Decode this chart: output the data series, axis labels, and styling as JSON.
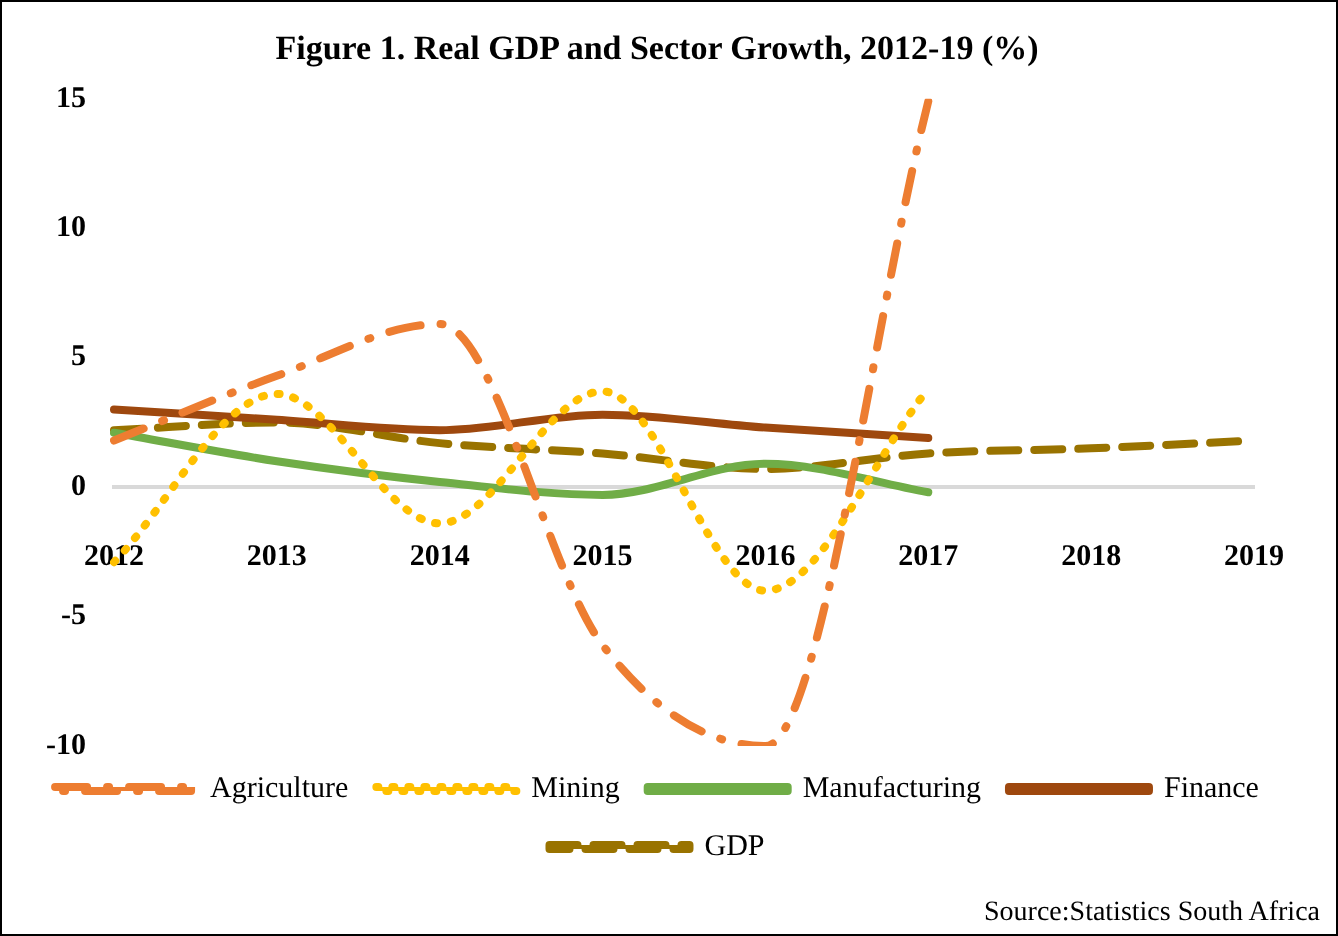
{
  "chart_data": {
    "type": "line",
    "title": "Figure 1. Real GDP and Sector Growth, 2012-19 (%)",
    "categories": [
      "2012",
      "2013",
      "2014",
      "2015",
      "2016",
      "2017",
      "2018",
      "2019"
    ],
    "series": [
      {
        "name": "Agriculture",
        "color": "#ed7d31",
        "line_style": "dashdot",
        "values": [
          1.8,
          4.3,
          6.3,
          -6.1,
          -10.0,
          14.9,
          null,
          null
        ]
      },
      {
        "name": "Mining",
        "color": "#ffc000",
        "line_style": "dotted",
        "values": [
          -2.9,
          3.6,
          -1.4,
          3.7,
          -4.0,
          3.8,
          null,
          null
        ]
      },
      {
        "name": "Manufacturing",
        "color": "#70ad47",
        "line_style": "solid",
        "values": [
          2.1,
          1.0,
          0.2,
          -0.3,
          0.9,
          -0.2,
          null,
          null
        ]
      },
      {
        "name": "Finance",
        "color": "#9e480e",
        "line_style": "solid",
        "values": [
          3.0,
          2.6,
          2.2,
          2.8,
          2.3,
          1.9,
          null,
          null
        ]
      },
      {
        "name": "GDP",
        "color": "#997300",
        "line_style": "dashed",
        "values": [
          2.2,
          2.5,
          1.7,
          1.3,
          0.7,
          1.3,
          1.5,
          1.8
        ]
      }
    ],
    "ylim": [
      -10,
      15
    ],
    "yticks": [
      -10,
      -5,
      0,
      5,
      10,
      15
    ],
    "grid": false,
    "legend": "bottom",
    "marker": "none",
    "annotations": [
      "Source:Statistics South Africa"
    ]
  }
}
